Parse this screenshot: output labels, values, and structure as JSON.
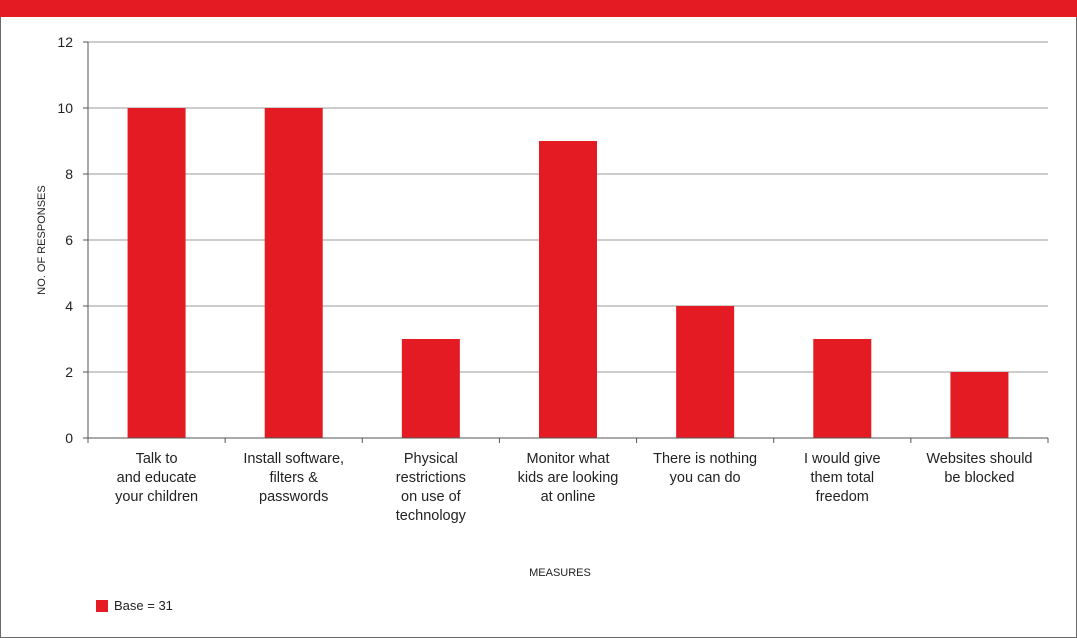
{
  "header": {
    "title": ""
  },
  "chart_data": {
    "type": "bar",
    "title": "",
    "xlabel": "MEASURES",
    "ylabel": "NO. OF RESPONSES",
    "ylim": [
      0,
      12
    ],
    "yticks": [
      0,
      2,
      4,
      6,
      8,
      10,
      12
    ],
    "grid": true,
    "bar_color": "#e41b23",
    "categories": [
      [
        "Talk to",
        "and educate",
        "your children"
      ],
      [
        "Install software,",
        "filters &",
        "passwords"
      ],
      [
        "Physical",
        "restrictions",
        "on use of",
        "technology"
      ],
      [
        "Monitor what",
        "kids are looking",
        "at online"
      ],
      [
        "There is nothing",
        "you can do"
      ],
      [
        "I would give",
        "them total",
        "freedom"
      ],
      [
        "Websites should",
        "be blocked"
      ]
    ],
    "values": [
      10,
      10,
      3,
      9,
      4,
      3,
      2
    ],
    "legend": {
      "label": "Base = 31",
      "position": "bottom-left"
    }
  }
}
